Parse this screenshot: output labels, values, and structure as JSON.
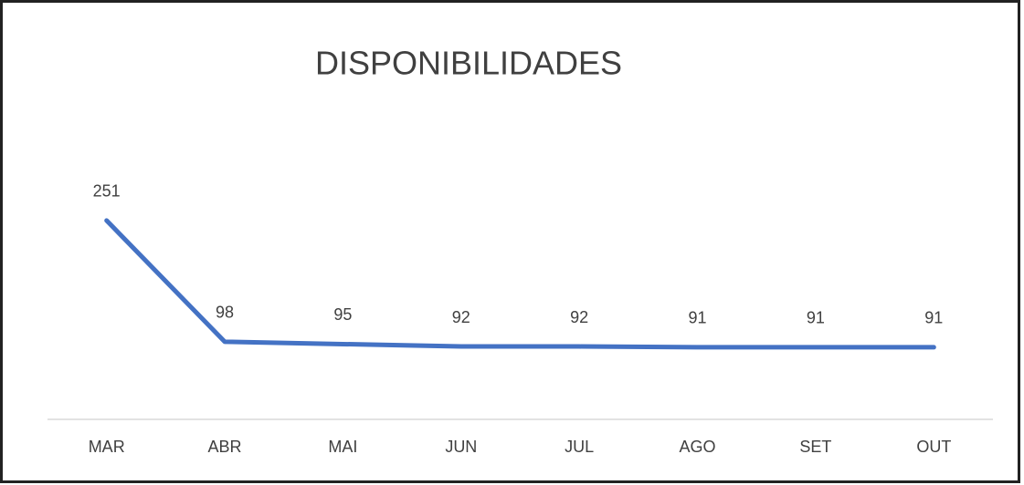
{
  "chart_data": {
    "type": "line",
    "title": "DISPONIBILIDADES",
    "categories": [
      "MAR",
      "ABR",
      "MAI",
      "JUN",
      "JUL",
      "AGO",
      "SET",
      "OUT"
    ],
    "values": [
      251,
      98,
      95,
      92,
      92,
      91,
      91,
      91
    ],
    "color": "#4472c4",
    "ylim": [
      0,
      300
    ]
  }
}
